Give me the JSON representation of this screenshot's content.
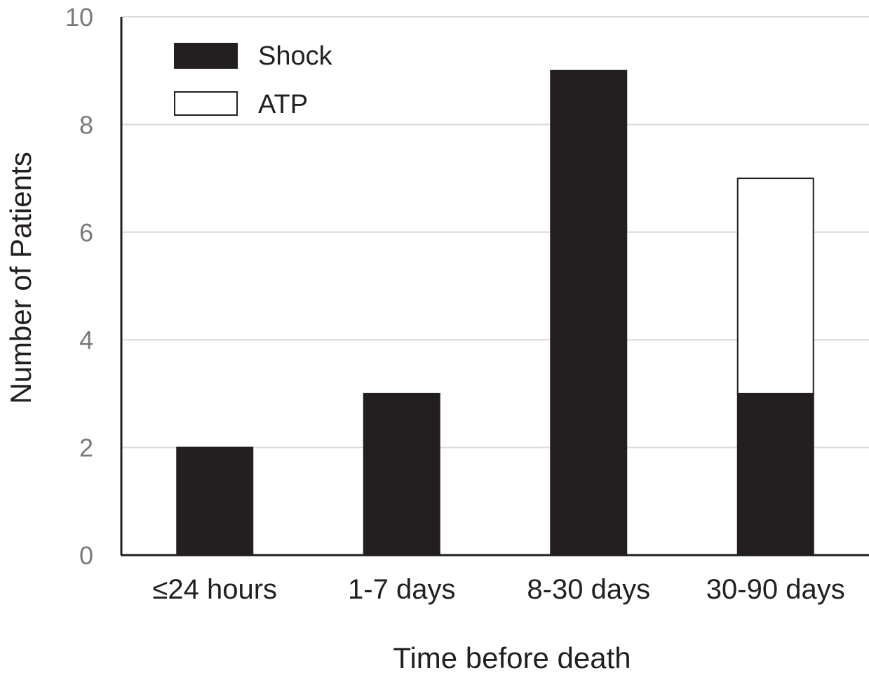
{
  "chart_data": {
    "type": "bar",
    "stacked": true,
    "categories": [
      "≤24 hours",
      "1-7 days",
      "8-30 days",
      "30-90 days"
    ],
    "series": [
      {
        "name": "Shock",
        "values": [
          2,
          3,
          9,
          3
        ],
        "color": "#231f20"
      },
      {
        "name": "ATP",
        "values": [
          0,
          0,
          0,
          4
        ],
        "color": "#ffffff"
      }
    ],
    "xlabel": "Time before death",
    "ylabel": "Number of Patients",
    "ylim": [
      0,
      10
    ],
    "yticks": [
      "0",
      "2",
      "4",
      "6",
      "8",
      "10"
    ],
    "grid": true,
    "legend_position": "top-left",
    "colors": {
      "axis": "#231f20",
      "grid": "#d9d9d9",
      "tick_text": "#7a7a7a"
    }
  }
}
